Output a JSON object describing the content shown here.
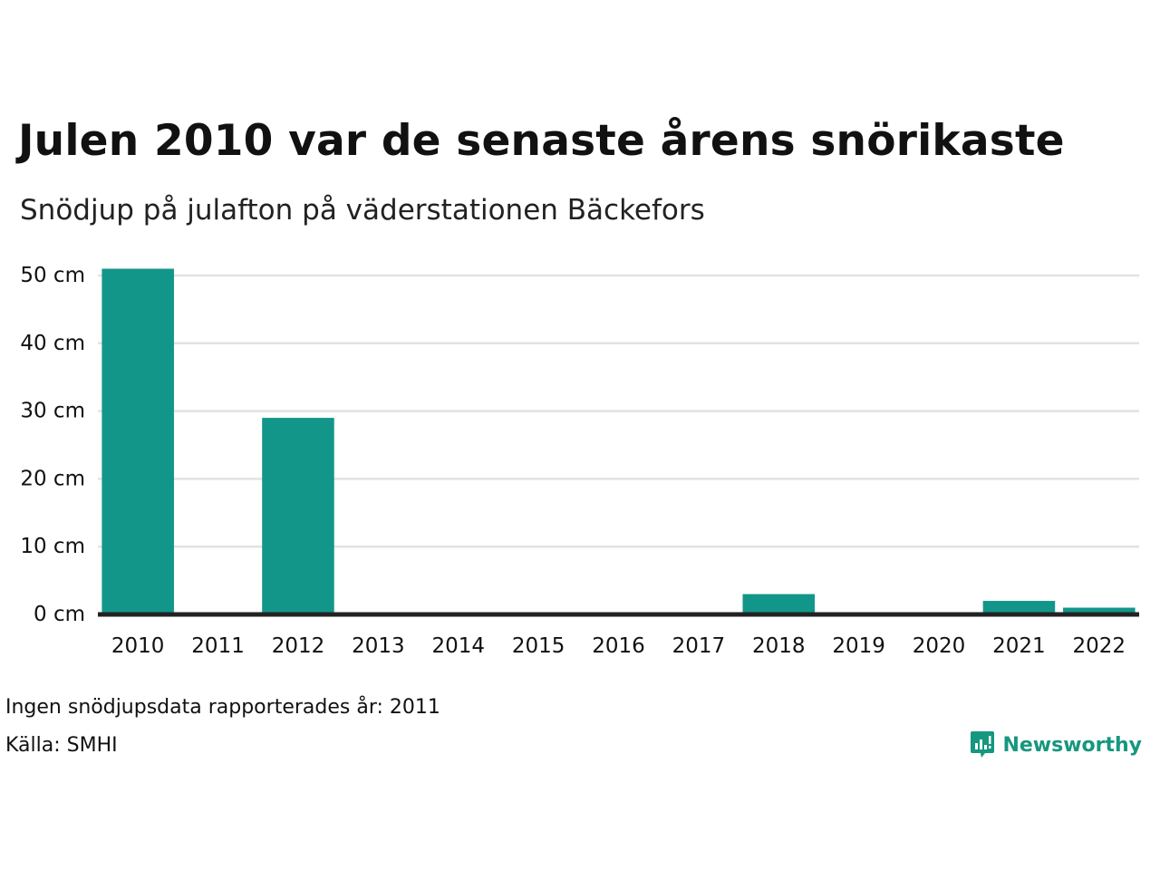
{
  "title": "Julen 2010 var de senaste årens snörikaste",
  "subtitle": "Snödjup på julafton på väderstationen Bäckefors",
  "notes": {
    "no_data": "Ingen snödjupsdata rapporterades år: 2011",
    "source": "Källa: SMHI"
  },
  "logo": {
    "text": "Newsworthy",
    "icon": "bar-chart-speech-bubble-icon"
  },
  "colors": {
    "bar": "#13968a",
    "grid": "#e2e2e2",
    "baseline": "#222222",
    "brand": "#16977f"
  },
  "chart_data": {
    "type": "bar",
    "title": "Julen 2010 var de senaste årens snörikaste",
    "subtitle": "Snödjup på julafton på väderstationen Bäckefors",
    "xlabel": "",
    "ylabel": "",
    "categories": [
      "2010",
      "2011",
      "2012",
      "2013",
      "2014",
      "2015",
      "2016",
      "2017",
      "2018",
      "2019",
      "2020",
      "2021",
      "2022"
    ],
    "values": [
      51,
      null,
      29,
      0,
      0,
      0,
      0,
      0,
      3,
      0,
      0,
      2,
      1
    ],
    "ylim": [
      0,
      50
    ],
    "yticks": [
      0,
      10,
      20,
      30,
      40,
      50
    ],
    "ytick_labels": [
      "0 cm",
      "10 cm",
      "20 cm",
      "30 cm",
      "40 cm",
      "50 cm"
    ],
    "grid": true,
    "legend": "none"
  }
}
